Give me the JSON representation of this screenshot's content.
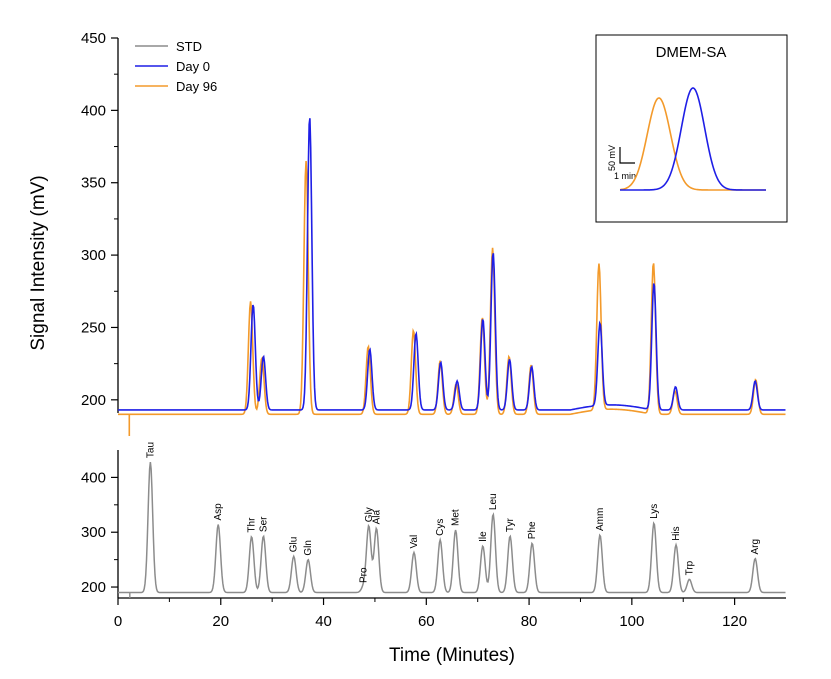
{
  "colors": {
    "std": "#8c8c8c",
    "day0": "#1f1fe6",
    "day96": "#f39a2b",
    "axis": "#000000"
  },
  "chart_data": [
    {
      "type": "line",
      "title": "",
      "xlabel": "",
      "ylabel": "Signal Intensity (mV)",
      "xlim": [
        0,
        130
      ],
      "ylim": [
        175,
        450
      ],
      "yticks": [
        200,
        250,
        300,
        350,
        400,
        450
      ],
      "legend": {
        "position": "top-left",
        "entries": [
          "STD",
          "Day 0",
          "Day 96"
        ]
      },
      "series": [
        {
          "name": "Day 0",
          "baseline": 193,
          "peaks": [
            {
              "x": 26.3,
              "y": 266
            },
            {
              "x": 28.3,
              "y": 230
            },
            {
              "x": 37.3,
              "y": 396
            },
            {
              "x": 49.0,
              "y": 235
            },
            {
              "x": 58.0,
              "y": 246
            },
            {
              "x": 62.8,
              "y": 226
            },
            {
              "x": 66.0,
              "y": 213
            },
            {
              "x": 71.0,
              "y": 256
            },
            {
              "x": 73.0,
              "y": 302
            },
            {
              "x": 76.2,
              "y": 228
            },
            {
              "x": 80.5,
              "y": 223
            },
            {
              "x": 93.8,
              "y": 250
            },
            {
              "x": 104.3,
              "y": 281
            },
            {
              "x": 108.5,
              "y": 209
            },
            {
              "x": 124.0,
              "y": 213
            }
          ]
        },
        {
          "name": "Day 96",
          "baseline": 190,
          "peaks": [
            {
              "x": 25.8,
              "y": 268
            },
            {
              "x": 28.0,
              "y": 229
            },
            {
              "x": 36.6,
              "y": 365
            },
            {
              "x": 48.7,
              "y": 237
            },
            {
              "x": 57.5,
              "y": 248
            },
            {
              "x": 62.7,
              "y": 227
            },
            {
              "x": 65.8,
              "y": 211
            },
            {
              "x": 70.9,
              "y": 257
            },
            {
              "x": 72.9,
              "y": 305
            },
            {
              "x": 76.1,
              "y": 230
            },
            {
              "x": 80.4,
              "y": 224
            },
            {
              "x": 93.6,
              "y": 291
            },
            {
              "x": 104.2,
              "y": 295
            },
            {
              "x": 108.4,
              "y": 206
            },
            {
              "x": 124.1,
              "y": 214
            }
          ]
        }
      ]
    },
    {
      "type": "line",
      "title": "",
      "xlabel": "Time (Minutes)",
      "ylabel": "",
      "xlim": [
        0,
        130
      ],
      "ylim": [
        180,
        450
      ],
      "xticks": [
        0,
        20,
        40,
        60,
        80,
        100,
        120
      ],
      "yticks": [
        200,
        300,
        400
      ],
      "series": [
        {
          "name": "STD",
          "baseline": 190,
          "peaks": [
            {
              "x": 6.3,
              "y": 428,
              "label": "Tau"
            },
            {
              "x": 19.5,
              "y": 314,
              "label": "Asp"
            },
            {
              "x": 26.0,
              "y": 292,
              "label": "Thr"
            },
            {
              "x": 28.3,
              "y": 293,
              "label": "Ser"
            },
            {
              "x": 34.2,
              "y": 256,
              "label": "Glu"
            },
            {
              "x": 37.0,
              "y": 250,
              "label": "Gln"
            },
            {
              "x": 47.8,
              "y": 200,
              "label": "Pro"
            },
            {
              "x": 48.8,
              "y": 311,
              "label": "Gly"
            },
            {
              "x": 50.3,
              "y": 307,
              "label": "Ala"
            },
            {
              "x": 57.6,
              "y": 263,
              "label": "Val"
            },
            {
              "x": 62.7,
              "y": 286,
              "label": "Cys"
            },
            {
              "x": 65.7,
              "y": 304,
              "label": "Met"
            },
            {
              "x": 71.0,
              "y": 275,
              "label": "Ile"
            },
            {
              "x": 73.0,
              "y": 333,
              "label": "Leu"
            },
            {
              "x": 76.3,
              "y": 293,
              "label": "Tyr"
            },
            {
              "x": 80.6,
              "y": 280,
              "label": "Phe"
            },
            {
              "x": 93.8,
              "y": 295,
              "label": "Amm"
            },
            {
              "x": 104.3,
              "y": 317,
              "label": "Lys"
            },
            {
              "x": 108.6,
              "y": 277,
              "label": "His"
            },
            {
              "x": 111.2,
              "y": 214,
              "label": "Trp"
            },
            {
              "x": 124.0,
              "y": 252,
              "label": "Arg"
            }
          ]
        }
      ]
    },
    {
      "type": "line",
      "title": "DMEM-SA",
      "scale_labels": {
        "y": "50 mV",
        "x": "1 min"
      },
      "series": [
        {
          "name": "Day 96",
          "peak_center": 0.8,
          "peak_height": 92
        },
        {
          "name": "Day 0",
          "peak_center": 1.5,
          "peak_height": 102
        }
      ]
    }
  ]
}
